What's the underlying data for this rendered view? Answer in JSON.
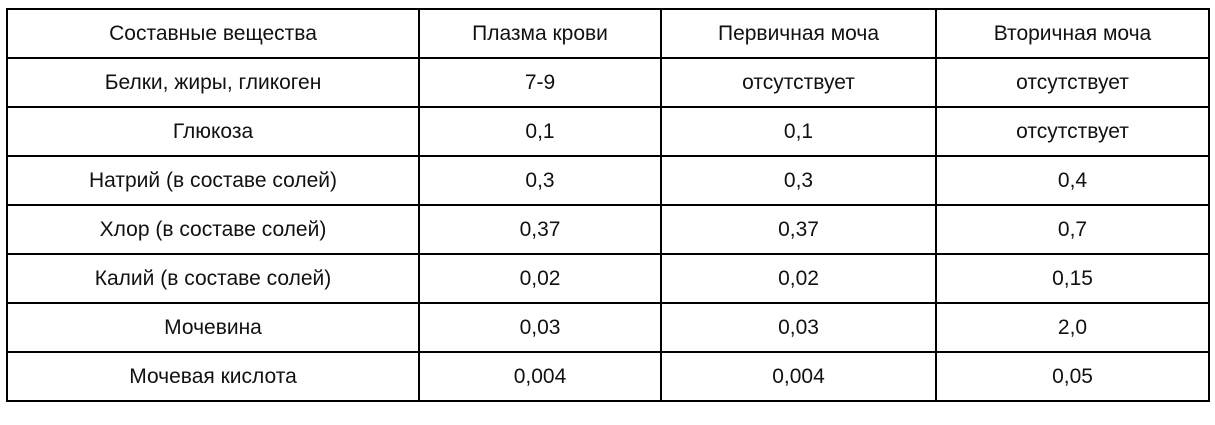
{
  "table": {
    "headers": [
      "Составные вещества",
      "Плазма крови",
      "Первичная моча",
      "Вторичная моча"
    ],
    "rows": [
      [
        "Белки, жиры, гликоген",
        "7-9",
        "отсутствует",
        "отсутствует"
      ],
      [
        "Глюкоза",
        "0,1",
        "0,1",
        "отсутствует"
      ],
      [
        "Натрий (в составе солей)",
        "0,3",
        "0,3",
        "0,4"
      ],
      [
        "Хлор (в составе солей)",
        "0,37",
        "0,37",
        "0,7"
      ],
      [
        "Калий (в составе солей)",
        "0,02",
        "0,02",
        "0,15"
      ],
      [
        "Мочевина",
        "0,03",
        "0,03",
        "2,0"
      ],
      [
        "Мочевая кислота",
        "0,004",
        "0,004",
        "0,05"
      ]
    ]
  }
}
